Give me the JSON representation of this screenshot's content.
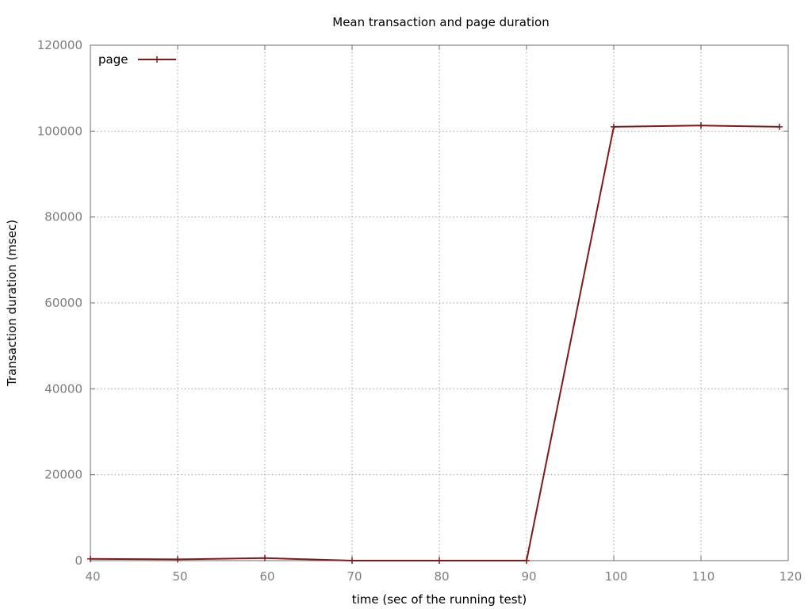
{
  "chart_data": {
    "type": "line",
    "title": "Mean transaction and page duration",
    "xlabel": "time (sec of the running test)",
    "ylabel": "Transaction duration (msec)",
    "xlim": [
      40,
      120
    ],
    "ylim": [
      0,
      120000
    ],
    "xticks": [
      40,
      50,
      60,
      70,
      80,
      90,
      100,
      110,
      120
    ],
    "yticks": [
      0,
      20000,
      40000,
      60000,
      80000,
      100000,
      120000
    ],
    "grid": true,
    "legend_position": "top-left",
    "series": [
      {
        "name": "page",
        "color": "#7f1a1a",
        "marker": "plus",
        "x": [
          40,
          50,
          60,
          70,
          80,
          90,
          100,
          110,
          119
        ],
        "y": [
          400,
          300,
          600,
          0,
          0,
          0,
          101000,
          101300,
          101000
        ]
      }
    ]
  }
}
